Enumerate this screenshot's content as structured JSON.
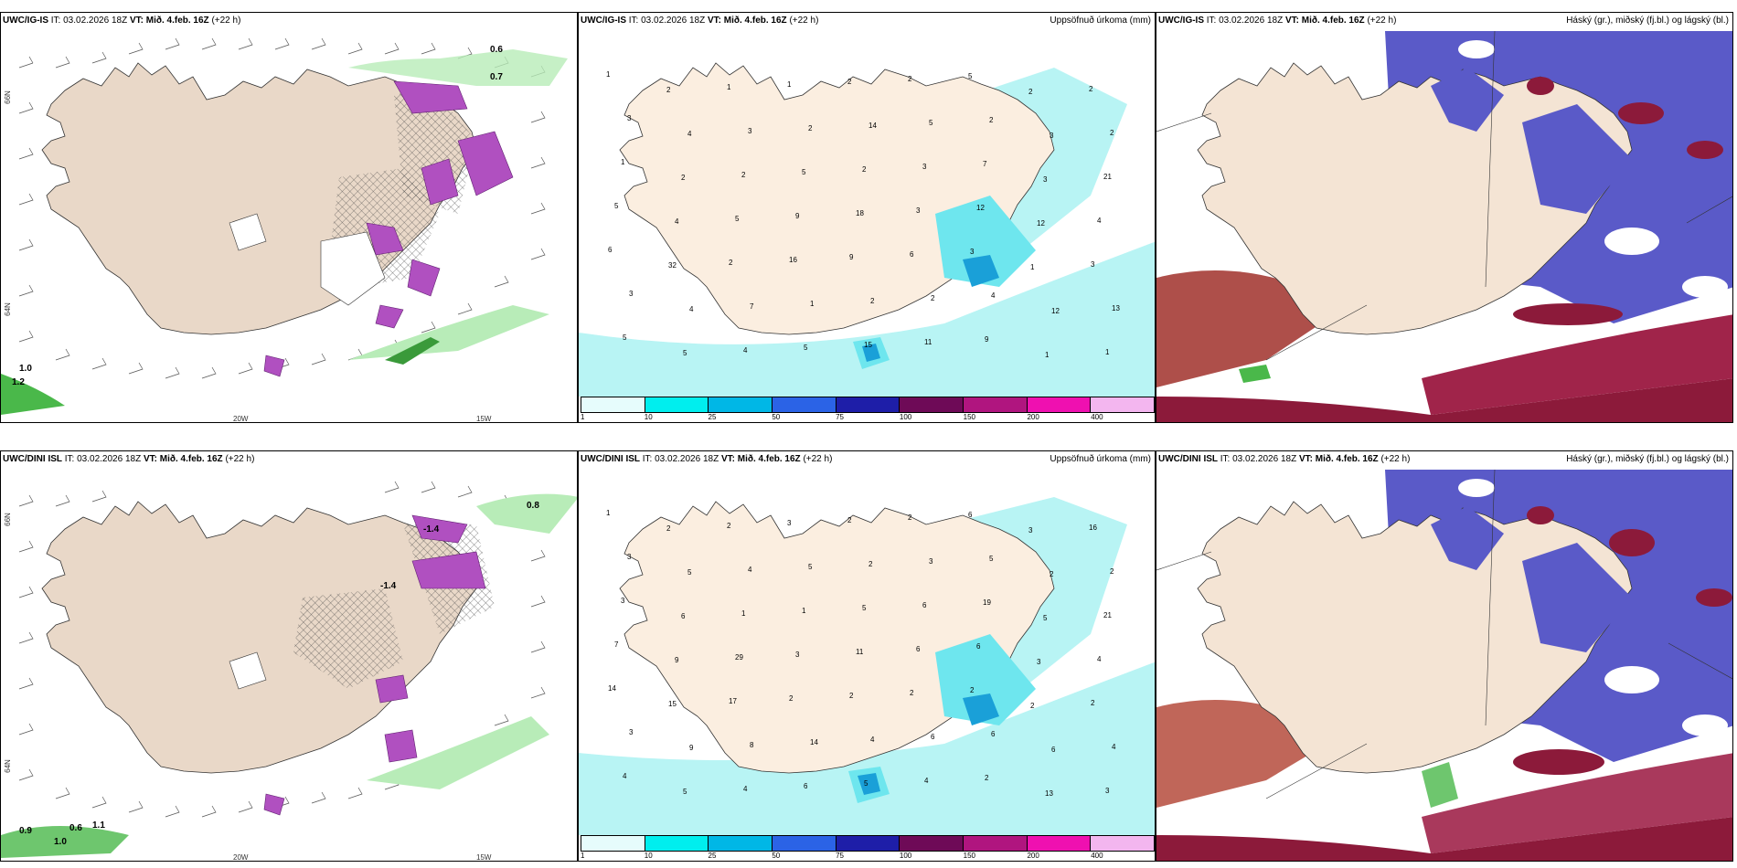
{
  "panels": [
    {
      "model": "UWC/IG-IS",
      "it_label": "IT:",
      "it": "03.02.2026 18Z",
      "vt_label": "VT:",
      "vt": "Mið. 4.feb. 16Z",
      "lead": "(+22 h)",
      "right": ""
    },
    {
      "model": "UWC/IG-IS",
      "it_label": "IT:",
      "it": "03.02.2026 18Z",
      "vt_label": "VT:",
      "vt": "Mið. 4.feb. 16Z",
      "lead": "(+22 h)",
      "right": "Uppsöfnuð úrkoma (mm)"
    },
    {
      "model": "UWC/IG-IS",
      "it_label": "IT:",
      "it": "03.02.2026 18Z",
      "vt_label": "VT:",
      "vt": "Mið. 4.feb. 16Z",
      "lead": "(+22 h)",
      "right": "Háský (gr.), miðský (fj.bl.) og lágský (bl.)"
    },
    {
      "model": "UWC/DINI ISL",
      "it_label": "IT:",
      "it": "03.02.2026 18Z",
      "vt_label": "VT:",
      "vt": "Mið. 4.feb. 16Z",
      "lead": "(+22 h)",
      "right": ""
    },
    {
      "model": "UWC/DINI ISL",
      "it_label": "IT:",
      "it": "03.02.2026 18Z",
      "vt_label": "VT:",
      "vt": "Mið. 4.feb. 16Z",
      "lead": "(+22 h)",
      "right": "Uppsöfnuð úrkoma (mm)"
    },
    {
      "model": "UWC/DINI ISL",
      "it_label": "IT:",
      "it": "03.02.2026 18Z",
      "vt_label": "VT:",
      "vt": "Mið. 4.feb. 16Z",
      "lead": "(+22 h)",
      "right": "Háský (gr.), miðský (fj.bl.) og lágský (bl.)"
    }
  ],
  "axis": {
    "lon_left": "20W",
    "lon_right": "15W",
    "lat_top": "66N",
    "lat_bottom": "64N"
  },
  "legend": {
    "ticks": [
      "1",
      "10",
      "25",
      "50",
      "75",
      "100",
      "150",
      "200",
      "400"
    ],
    "colors": [
      "#e6fcfc",
      "#00eeee",
      "#00b7e6",
      "#2b63e6",
      "#1e1ea8",
      "#6e0a57",
      "#b0157f",
      "#ef10b0",
      "#f3b6ef"
    ]
  },
  "colors": {
    "land": "#f4e4d4",
    "sea": "#ffffff",
    "cyan": "#a6f2f2",
    "purple": "#5a5ac8",
    "maroon": "#8c1a3a",
    "green": "#8ee08e",
    "magenta": "#c050c0"
  },
  "precip_labels_top": [
    "1",
    "2",
    "1",
    "1",
    "2",
    "2",
    "5",
    "2",
    "2",
    "3",
    "4",
    "3",
    "2",
    "14",
    "5",
    "2",
    "3",
    "2",
    "1",
    "2",
    "2",
    "5",
    "2",
    "3",
    "7",
    "3",
    "21",
    "5",
    "4",
    "5",
    "9",
    "18",
    "3",
    "12",
    "12",
    "4",
    "6",
    "32",
    "2",
    "16",
    "9",
    "6",
    "3",
    "1",
    "3",
    "3",
    "4",
    "7",
    "1",
    "2",
    "2",
    "4",
    "12",
    "13",
    "5",
    "5",
    "4",
    "5",
    "15",
    "11",
    "9",
    "1",
    "1"
  ],
  "precip_labels_bottom": [
    "1",
    "2",
    "2",
    "3",
    "2",
    "2",
    "6",
    "3",
    "16",
    "3",
    "5",
    "4",
    "5",
    "2",
    "3",
    "5",
    "2",
    "2",
    "3",
    "6",
    "1",
    "1",
    "5",
    "6",
    "19",
    "5",
    "21",
    "7",
    "9",
    "29",
    "3",
    "11",
    "6",
    "6",
    "3",
    "4",
    "14",
    "15",
    "17",
    "2",
    "2",
    "2",
    "2",
    "2",
    "2",
    "3",
    "9",
    "8",
    "14",
    "4",
    "6",
    "6",
    "6",
    "4",
    "4",
    "5",
    "4",
    "6",
    "5",
    "4",
    "2",
    "13",
    "3"
  ],
  "temp_labels_top": [
    "0.6",
    "0.7",
    "1.0",
    "1.2"
  ],
  "temp_labels_bottom": [
    "0.8",
    "-1.4",
    "-1.4",
    "0.6",
    "1.1",
    "0.9",
    "1.0"
  ]
}
